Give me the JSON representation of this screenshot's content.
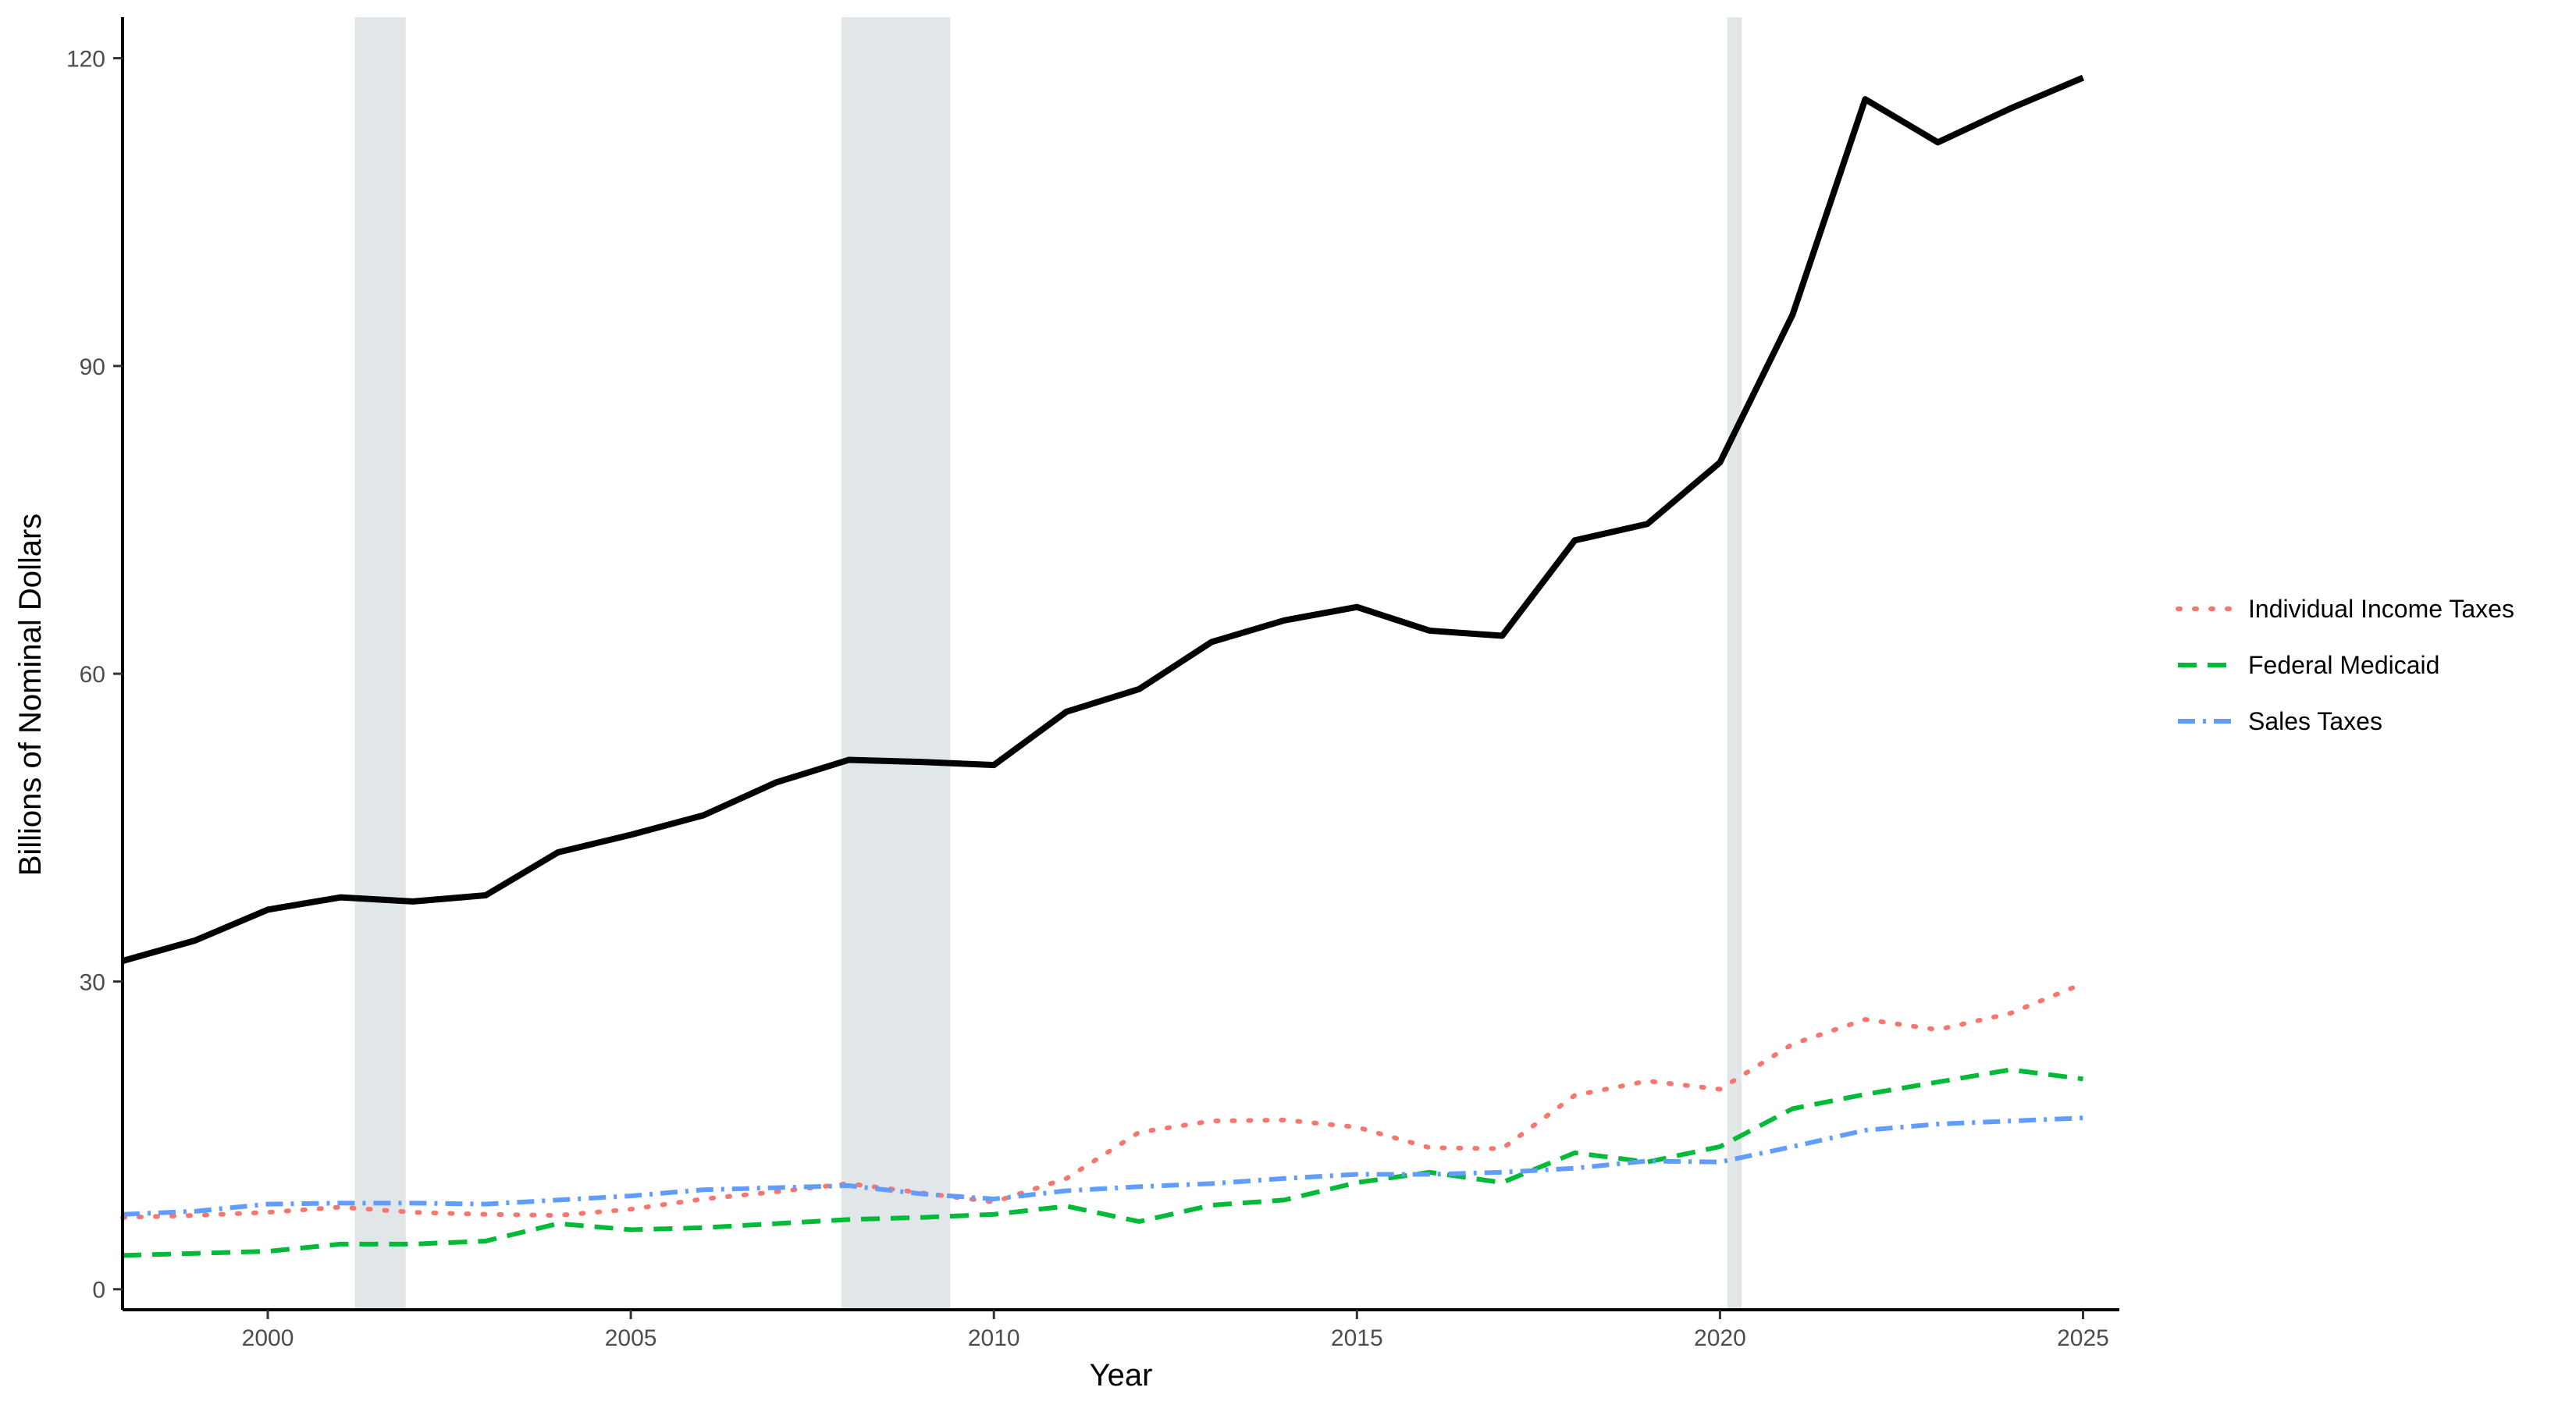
{
  "chart_data": {
    "type": "line",
    "title": "",
    "xlabel": "Year",
    "ylabel": "Billions of Nominal Dollars",
    "xlim": [
      1998,
      2025.5
    ],
    "ylim": [
      -2,
      124
    ],
    "x_ticks": [
      "2000",
      "2005",
      "2010",
      "2015",
      "2020",
      "2025"
    ],
    "y_ticks": [
      "0",
      "30",
      "60",
      "90",
      "120"
    ],
    "grid": false,
    "legend_position": "right",
    "recession_shading": [
      {
        "start": 2001.2,
        "end": 2001.9
      },
      {
        "start": 2007.9,
        "end": 2009.4
      },
      {
        "start": 2020.1,
        "end": 2020.3
      }
    ],
    "x": [
      1998,
      1999,
      2000,
      2001,
      2002,
      2003,
      2004,
      2005,
      2006,
      2007,
      2008,
      2009,
      2010,
      2011,
      2012,
      2013,
      2014,
      2015,
      2016,
      2017,
      2018,
      2019,
      2020,
      2021,
      2022,
      2023,
      2024,
      2025
    ],
    "series": [
      {
        "color": "#000000",
        "style": "solid",
        "values": [
          32,
          34,
          37,
          38.2,
          37.8,
          38.4,
          42.6,
          44.3,
          46.2,
          49.4,
          51.6,
          51.4,
          51.1,
          56.3,
          58.5,
          63.1,
          65.2,
          66.5,
          64.2,
          63.7,
          73.0,
          74.6,
          80.6,
          95.0,
          116.0,
          111.8,
          115.1,
          118.1
        ]
      },
      {
        "name": "Individual Income Taxes",
        "color": "#F8766D",
        "style": "dotted",
        "values": [
          7.0,
          7.2,
          7.5,
          8.0,
          7.5,
          7.3,
          7.2,
          7.8,
          8.8,
          9.5,
          10.3,
          9.4,
          8.5,
          10.8,
          15.3,
          16.4,
          16.5,
          15.8,
          13.8,
          13.7,
          18.9,
          20.3,
          19.5,
          23.9,
          26.3,
          25.3,
          26.9,
          29.8
        ]
      },
      {
        "name": "Federal Medicaid",
        "color": "#00BA38",
        "style": "dashed",
        "values": [
          3.3,
          3.5,
          3.7,
          4.4,
          4.4,
          4.7,
          6.4,
          5.8,
          6.0,
          6.4,
          6.8,
          7.0,
          7.3,
          8.1,
          6.6,
          8.2,
          8.7,
          10.4,
          11.4,
          10.4,
          13.3,
          12.4,
          13.9,
          17.6,
          19.0,
          20.2,
          21.4,
          20.5
        ]
      },
      {
        "name": "Sales Taxes",
        "color": "#619CFF",
        "style": "dotdash",
        "values": [
          7.3,
          7.6,
          8.3,
          8.4,
          8.4,
          8.3,
          8.7,
          9.1,
          9.7,
          9.9,
          10.1,
          9.3,
          8.8,
          9.6,
          10.0,
          10.3,
          10.8,
          11.2,
          11.2,
          11.4,
          11.8,
          12.5,
          12.4,
          13.9,
          15.5,
          16.1,
          16.4,
          16.7
        ]
      }
    ],
    "colors": {
      "recession": "#E1E6E9",
      "axis": "#000000"
    }
  }
}
